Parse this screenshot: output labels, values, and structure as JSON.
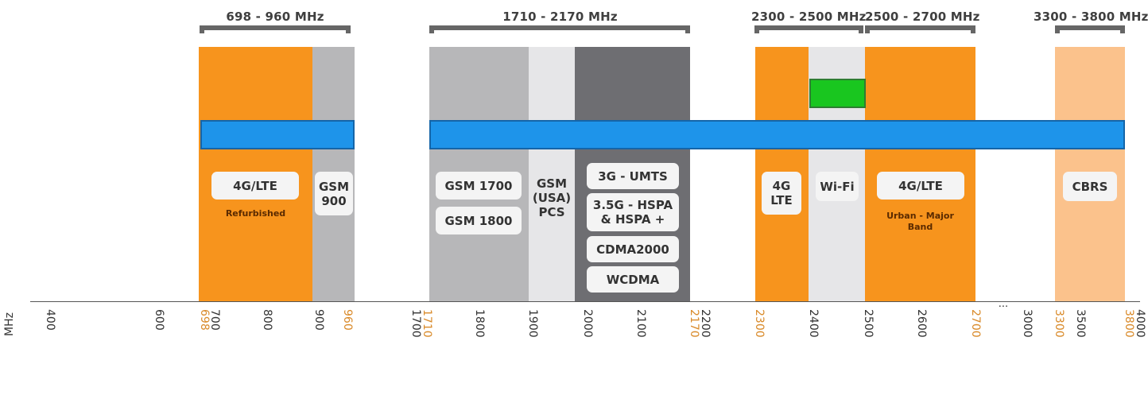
{
  "colors": {
    "orange": "#f7941d",
    "light_orange": "#fbc28c",
    "gray": "#b7b7b9",
    "light_gray": "#e6e6e8",
    "dark_gray": "#6e6e72",
    "blue": "#1e94ea",
    "green": "#19c61f",
    "bracket": "#666666",
    "highlight_tick": "#d98a2a"
  },
  "ranges": [
    "698 - 960 MHz",
    "1710 - 2170 MHz",
    "2300 - 2500 MHz",
    "2500 - 2700 MHz",
    "3300 - 3800 MHz"
  ],
  "labels": {
    "lte_refurb": "4G/LTE",
    "refurbished_note": "Refurbished",
    "gsm900": "GSM\n900",
    "gsm1700": "GSM 1700",
    "gsm1800": "GSM 1800",
    "gsm_usa_pcs": "GSM\n(USA)\nPCS",
    "umts": "3G - UMTS",
    "hspa": "3.5G - HSPA\n& HSPA +",
    "cdma2000": "CDMA2000",
    "wcdma": "WCDMA",
    "lte_2300": "4G\nLTE",
    "wifi": "Wi-Fi",
    "lte_urban": "4G/LTE",
    "urban_note": "Urban - Major\nBand",
    "cbrs": "CBRS"
  },
  "axis": {
    "unit": "MHz",
    "ellipsis": "...",
    "ticks": [
      {
        "label": "400",
        "highlight": false
      },
      {
        "label": "600",
        "highlight": false
      },
      {
        "label": "698",
        "highlight": true
      },
      {
        "label": "700",
        "highlight": false
      },
      {
        "label": "800",
        "highlight": false
      },
      {
        "label": "900",
        "highlight": false
      },
      {
        "label": "960",
        "highlight": true
      },
      {
        "label": "1700",
        "highlight": false
      },
      {
        "label": "1710",
        "highlight": true
      },
      {
        "label": "1800",
        "highlight": false
      },
      {
        "label": "1900",
        "highlight": false
      },
      {
        "label": "2000",
        "highlight": false
      },
      {
        "label": "2100",
        "highlight": false
      },
      {
        "label": "2170",
        "highlight": true
      },
      {
        "label": "2200",
        "highlight": false
      },
      {
        "label": "2300",
        "highlight": true
      },
      {
        "label": "2400",
        "highlight": false
      },
      {
        "label": "2500",
        "highlight": false
      },
      {
        "label": "2600",
        "highlight": false
      },
      {
        "label": "2700",
        "highlight": true
      },
      {
        "label": "3000",
        "highlight": false
      },
      {
        "label": "3300",
        "highlight": true
      },
      {
        "label": "3500",
        "highlight": false
      },
      {
        "label": "3800",
        "highlight": true
      },
      {
        "label": "4000",
        "highlight": false
      }
    ]
  }
}
